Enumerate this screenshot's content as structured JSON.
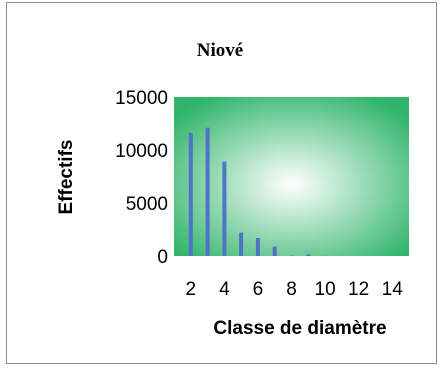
{
  "chart_data": {
    "type": "bar",
    "title": "Niové",
    "xlabel": "Classe de diamètre",
    "ylabel": "Effectifs",
    "x": [
      2,
      3,
      4,
      5,
      6,
      7,
      8,
      9,
      10,
      11,
      12,
      13,
      14
    ],
    "values": [
      11600,
      12100,
      8900,
      2200,
      1700,
      900,
      40,
      150,
      20,
      10,
      5,
      5,
      5
    ],
    "xticks": [
      "2",
      "4",
      "6",
      "8",
      "10",
      "12",
      "14"
    ],
    "yticks": [
      "0",
      "5000",
      "10000",
      "15000"
    ],
    "ylim": [
      0,
      15000
    ],
    "xlim": [
      1,
      15
    ],
    "grid": false,
    "legend": "none",
    "colors": {
      "bar": "#4f73c6",
      "plot_bg_center": "#ffffff",
      "plot_bg_edge": "#2fb46a"
    }
  }
}
